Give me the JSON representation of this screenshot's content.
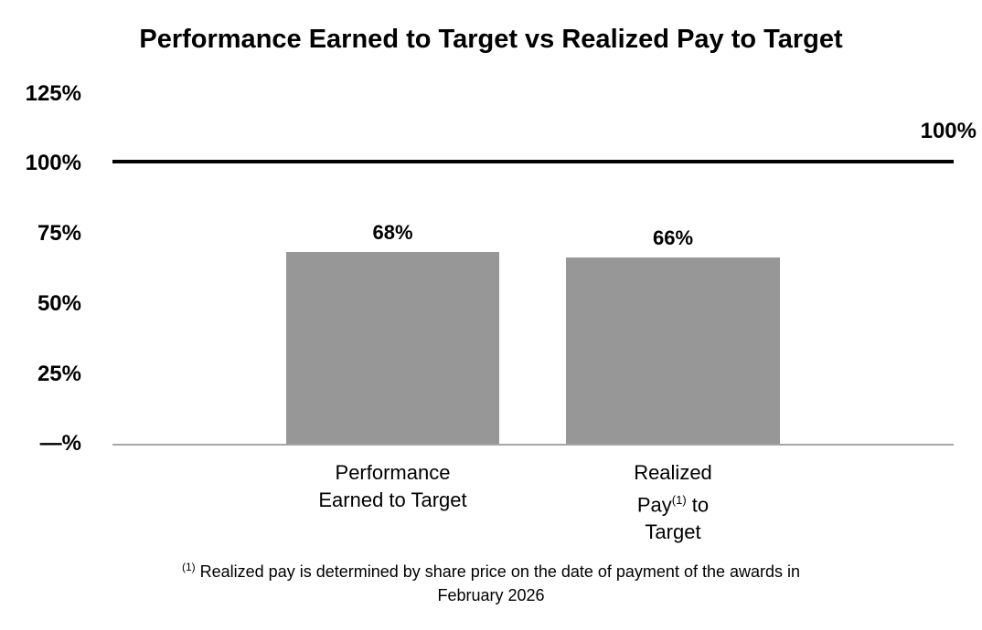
{
  "chart_data": {
    "type": "bar",
    "title": "Performance Earned to Target vs Realized Pay to Target",
    "categories": [
      "Performance Earned to Target",
      "Realized Pay(1) to Target"
    ],
    "values": [
      68,
      66
    ],
    "value_labels": [
      "68%",
      "66%"
    ],
    "xlabel": "",
    "ylabel": "",
    "ylim": [
      0,
      125
    ],
    "grid": false,
    "legend": false,
    "yticks": [
      {
        "value": 125,
        "label": "125%"
      },
      {
        "value": 100,
        "label": "100%"
      },
      {
        "value": 75,
        "label": "75%"
      },
      {
        "value": 50,
        "label": "50%"
      },
      {
        "value": 25,
        "label": "25%"
      },
      {
        "value": 0,
        "label": "—%"
      }
    ],
    "target_line": {
      "value": 100,
      "label": "100%",
      "color": "#000000"
    },
    "bar_color": "#979797",
    "axis_line_color": "#a6a6a6",
    "footnote": "(1) Realized pay is determined by share price on the date of payment of the awards in February 2026"
  },
  "display": {
    "category1": {
      "line1": "Performance",
      "line2": "Earned to Target"
    },
    "category2": {
      "line1": "Realized",
      "line2_pay": "Pay",
      "line2_sup": "(1)",
      "line2_to": " to",
      "line3": "Target"
    },
    "footnote": {
      "sup": "(1)",
      "line1": " Realized pay is determined by share price on the date of payment of the awards in",
      "line2": "February 2026"
    }
  }
}
